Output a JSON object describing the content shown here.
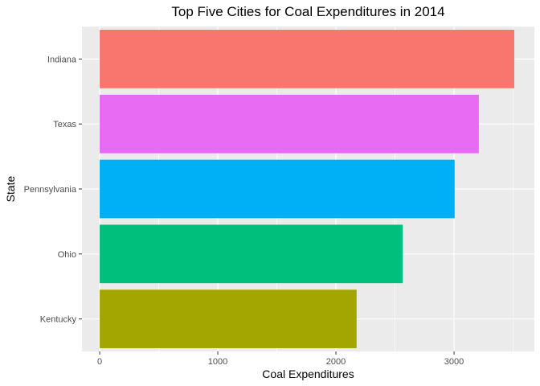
{
  "chart_data": {
    "type": "bar",
    "orientation": "horizontal",
    "title": "Top Five Cities for Coal Expenditures in 2014",
    "xlabel": "Coal Expenditures",
    "ylabel": "State",
    "categories": [
      "Indiana",
      "Texas",
      "Pennsylvania",
      "Ohio",
      "Kentucky"
    ],
    "values": [
      3510,
      3210,
      3005,
      2565,
      2175
    ],
    "colors": [
      "#F8766D",
      "#E76BF3",
      "#00B0F6",
      "#00BF7D",
      "#A3A500"
    ],
    "xlim": [
      -150,
      3680
    ],
    "xticks": [
      0,
      1000,
      2000,
      3000
    ],
    "xtick_labels": [
      "0",
      "1000",
      "2000",
      "3000"
    ],
    "grid": true,
    "legend": "none",
    "panel_background": "#EBEBEB",
    "grid_color": "#FFFFFF"
  }
}
